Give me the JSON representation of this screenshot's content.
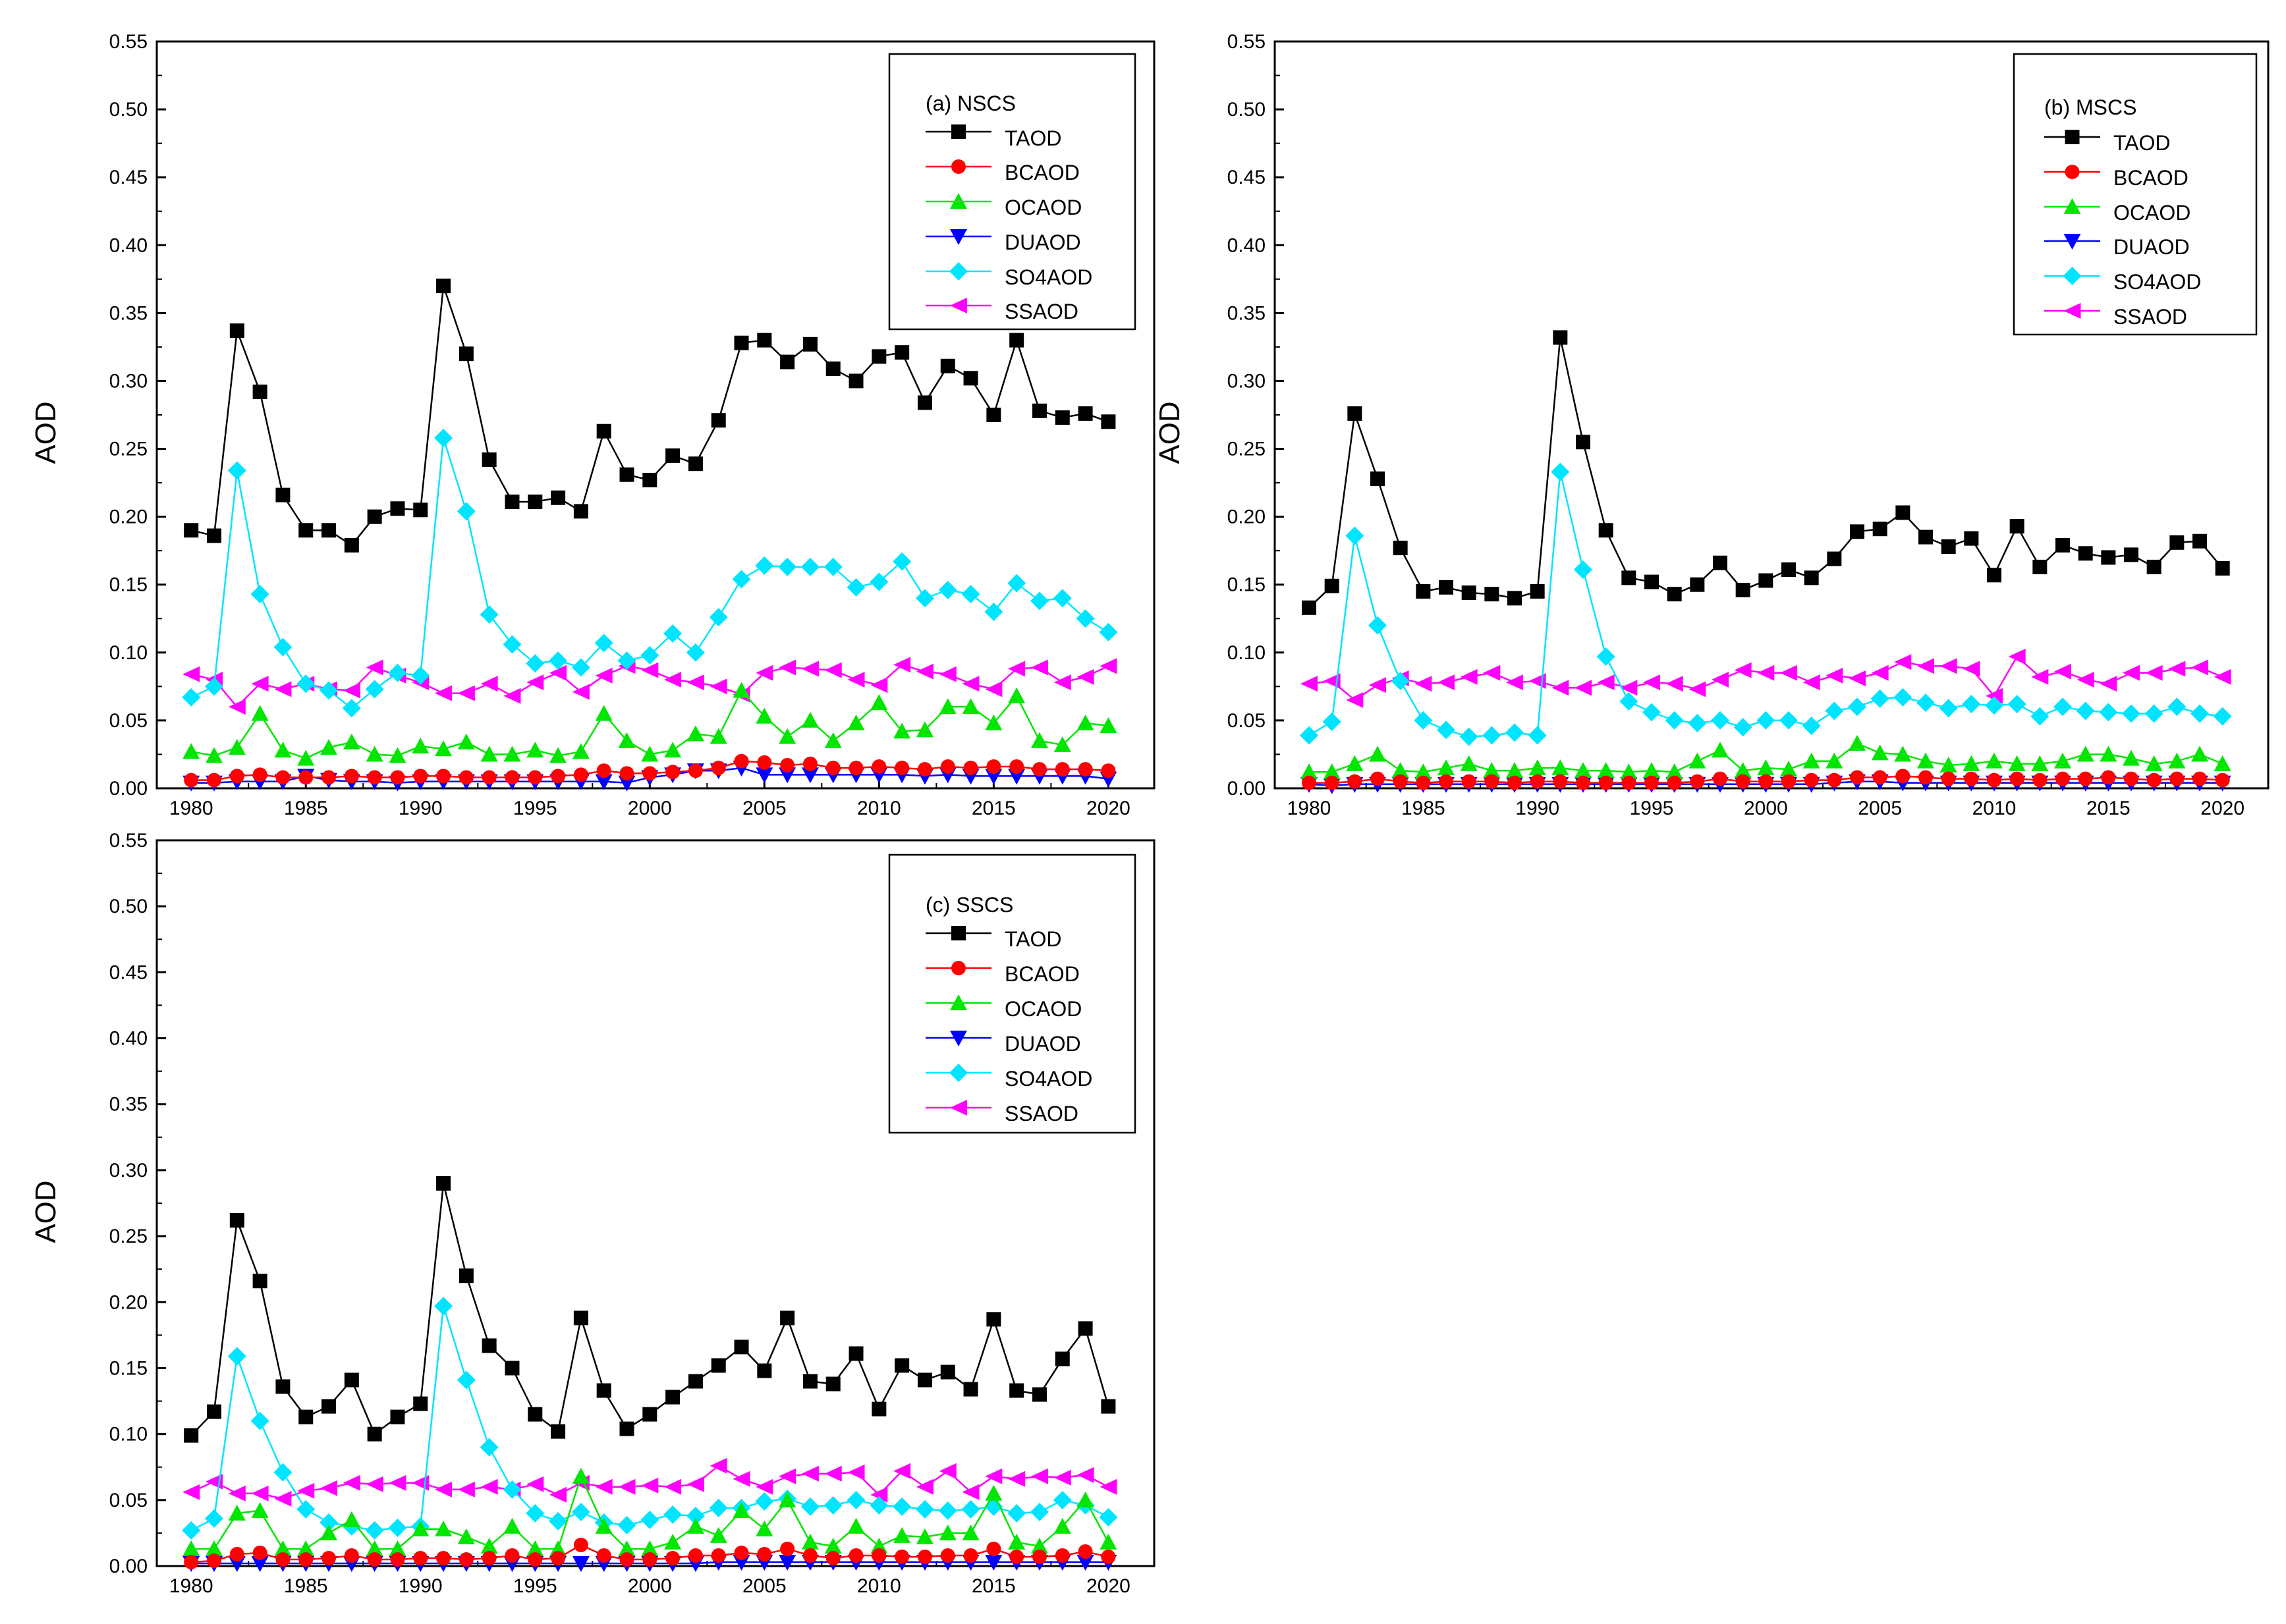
{
  "figure": {
    "ylabel": "AOD"
  },
  "colors": {
    "TAOD": "#000000",
    "BCAOD": "#ff0000",
    "OCAOD": "#00e600",
    "DUAOD": "#0000ff",
    "SO4AOD": "#00e5ff",
    "SSAOD": "#ff00ff"
  },
  "markers": {
    "TAOD": "square",
    "BCAOD": "circle",
    "OCAOD": "triangle-up",
    "DUAOD": "triangle-down",
    "SO4AOD": "diamond",
    "SSAOD": "triangle-left"
  },
  "chart_data": [
    {
      "type": "line",
      "id": "a",
      "title": "(a) NSCS",
      "xlabel": "",
      "ylabel": "AOD",
      "xlim": [
        1978.5,
        2022
      ],
      "ylim": [
        0,
        0.55
      ],
      "xticks": [
        "1980",
        "1985",
        "1990",
        "1995",
        "2000",
        "2005",
        "2010",
        "2015",
        "2020"
      ],
      "yticks": [
        "0.00",
        "0.05",
        "0.10",
        "0.15",
        "0.20",
        "0.25",
        "0.30",
        "0.35",
        "0.40",
        "0.45",
        "0.50",
        "0.55"
      ],
      "legend": [
        "TAOD",
        "BCAOD",
        "OCAOD",
        "DUAOD",
        "SO4AOD",
        "SSAOD"
      ],
      "legend_position": "top-right",
      "x": [
        1980,
        1981,
        1982,
        1983,
        1984,
        1985,
        1986,
        1987,
        1988,
        1989,
        1990,
        1991,
        1992,
        1993,
        1994,
        1995,
        1996,
        1997,
        1998,
        1999,
        2000,
        2001,
        2002,
        2003,
        2004,
        2005,
        2006,
        2007,
        2008,
        2009,
        2010,
        2011,
        2012,
        2013,
        2014,
        2015,
        2016,
        2017,
        2018,
        2019,
        2020
      ],
      "series": [
        {
          "name": "TAOD",
          "values": [
            0.19,
            0.186,
            0.337,
            0.292,
            0.216,
            0.19,
            0.19,
            0.179,
            0.2,
            0.206,
            0.205,
            0.37,
            0.32,
            0.242,
            0.211,
            0.211,
            0.214,
            0.204,
            0.263,
            0.231,
            0.227,
            0.245,
            0.239,
            0.271,
            0.328,
            0.33,
            0.314,
            0.327,
            0.309,
            0.3,
            0.318,
            0.321,
            0.284,
            0.311,
            0.302,
            0.275,
            0.33,
            0.278,
            0.273,
            0.276,
            0.27
          ]
        },
        {
          "name": "BCAOD",
          "values": [
            0.006,
            0.006,
            0.009,
            0.01,
            0.008,
            0.008,
            0.008,
            0.009,
            0.008,
            0.008,
            0.009,
            0.009,
            0.008,
            0.008,
            0.008,
            0.008,
            0.009,
            0.01,
            0.013,
            0.011,
            0.011,
            0.012,
            0.013,
            0.015,
            0.02,
            0.019,
            0.017,
            0.018,
            0.015,
            0.015,
            0.016,
            0.015,
            0.014,
            0.016,
            0.015,
            0.016,
            0.016,
            0.014,
            0.014,
            0.014,
            0.013
          ]
        },
        {
          "name": "OCAOD",
          "values": [
            0.027,
            0.024,
            0.03,
            0.055,
            0.028,
            0.022,
            0.03,
            0.034,
            0.025,
            0.024,
            0.031,
            0.029,
            0.034,
            0.025,
            0.025,
            0.028,
            0.024,
            0.027,
            0.055,
            0.035,
            0.025,
            0.028,
            0.04,
            0.038,
            0.072,
            0.053,
            0.038,
            0.05,
            0.035,
            0.048,
            0.063,
            0.042,
            0.043,
            0.06,
            0.06,
            0.048,
            0.068,
            0.035,
            0.032,
            0.048,
            0.046
          ]
        },
        {
          "name": "DUAOD",
          "values": [
            0.004,
            0.004,
            0.005,
            0.005,
            0.005,
            0.009,
            0.006,
            0.005,
            0.005,
            0.004,
            0.005,
            0.005,
            0.005,
            0.005,
            0.005,
            0.005,
            0.005,
            0.005,
            0.005,
            0.004,
            0.008,
            0.01,
            0.013,
            0.013,
            0.015,
            0.01,
            0.01,
            0.01,
            0.01,
            0.01,
            0.01,
            0.01,
            0.009,
            0.01,
            0.009,
            0.009,
            0.009,
            0.009,
            0.009,
            0.009,
            0.007
          ]
        },
        {
          "name": "SO4AOD",
          "values": [
            0.067,
            0.075,
            0.234,
            0.143,
            0.104,
            0.077,
            0.072,
            0.059,
            0.073,
            0.085,
            0.083,
            0.258,
            0.204,
            0.128,
            0.106,
            0.092,
            0.094,
            0.089,
            0.107,
            0.094,
            0.098,
            0.114,
            0.1,
            0.126,
            0.154,
            0.164,
            0.163,
            0.163,
            0.163,
            0.148,
            0.152,
            0.167,
            0.14,
            0.146,
            0.143,
            0.13,
            0.151,
            0.138,
            0.14,
            0.125,
            0.115
          ]
        },
        {
          "name": "SSAOD",
          "values": [
            0.084,
            0.08,
            0.06,
            0.077,
            0.073,
            0.077,
            0.073,
            0.072,
            0.089,
            0.083,
            0.078,
            0.07,
            0.07,
            0.077,
            0.068,
            0.078,
            0.085,
            0.071,
            0.083,
            0.09,
            0.087,
            0.08,
            0.078,
            0.075,
            0.069,
            0.085,
            0.089,
            0.088,
            0.087,
            0.08,
            0.076,
            0.091,
            0.086,
            0.084,
            0.077,
            0.073,
            0.088,
            0.089,
            0.078,
            0.082,
            0.09
          ]
        }
      ]
    },
    {
      "type": "line",
      "id": "b",
      "title": "(b) MSCS",
      "xlabel": "",
      "ylabel": "AOD",
      "xlim": [
        1978.5,
        2022
      ],
      "ylim": [
        0,
        0.55
      ],
      "xticks": [
        "1980",
        "1985",
        "1990",
        "1995",
        "2000",
        "2005",
        "2010",
        "2015",
        "2020"
      ],
      "yticks": [
        "0.00",
        "0.05",
        "0.10",
        "0.15",
        "0.20",
        "0.25",
        "0.30",
        "0.35",
        "0.40",
        "0.45",
        "0.50",
        "0.55"
      ],
      "legend": [
        "TAOD",
        "BCAOD",
        "OCAOD",
        "DUAOD",
        "SO4AOD",
        "SSAOD"
      ],
      "legend_position": "top-right",
      "x": [
        1980,
        1981,
        1982,
        1983,
        1984,
        1985,
        1986,
        1987,
        1988,
        1989,
        1990,
        1991,
        1992,
        1993,
        1994,
        1995,
        1996,
        1997,
        1998,
        1999,
        2000,
        2001,
        2002,
        2003,
        2004,
        2005,
        2006,
        2007,
        2008,
        2009,
        2010,
        2011,
        2012,
        2013,
        2014,
        2015,
        2016,
        2017,
        2018,
        2019,
        2020
      ],
      "series": [
        {
          "name": "TAOD",
          "values": [
            0.133,
            0.149,
            0.276,
            0.228,
            0.177,
            0.145,
            0.148,
            0.144,
            0.143,
            0.14,
            0.145,
            0.332,
            0.255,
            0.19,
            0.155,
            0.152,
            0.143,
            0.15,
            0.166,
            0.146,
            0.153,
            0.161,
            0.155,
            0.169,
            0.189,
            0.191,
            0.203,
            0.185,
            0.178,
            0.184,
            0.157,
            0.193,
            0.163,
            0.179,
            0.173,
            0.17,
            0.172,
            0.163,
            0.181,
            0.182,
            0.162
          ]
        },
        {
          "name": "BCAOD",
          "values": [
            0.004,
            0.004,
            0.005,
            0.007,
            0.005,
            0.004,
            0.005,
            0.005,
            0.005,
            0.004,
            0.005,
            0.005,
            0.004,
            0.004,
            0.004,
            0.004,
            0.004,
            0.005,
            0.007,
            0.005,
            0.005,
            0.005,
            0.006,
            0.006,
            0.008,
            0.008,
            0.009,
            0.008,
            0.007,
            0.007,
            0.006,
            0.007,
            0.006,
            0.007,
            0.007,
            0.008,
            0.007,
            0.006,
            0.007,
            0.007,
            0.006
          ]
        },
        {
          "name": "OCAOD",
          "values": [
            0.012,
            0.012,
            0.018,
            0.025,
            0.013,
            0.012,
            0.015,
            0.018,
            0.013,
            0.013,
            0.015,
            0.015,
            0.013,
            0.013,
            0.012,
            0.013,
            0.012,
            0.02,
            0.028,
            0.013,
            0.015,
            0.014,
            0.02,
            0.02,
            0.033,
            0.026,
            0.025,
            0.02,
            0.017,
            0.018,
            0.02,
            0.018,
            0.018,
            0.02,
            0.025,
            0.025,
            0.022,
            0.018,
            0.02,
            0.025,
            0.018
          ]
        },
        {
          "name": "DUAOD",
          "values": [
            0.003,
            0.002,
            0.003,
            0.003,
            0.003,
            0.003,
            0.003,
            0.003,
            0.003,
            0.003,
            0.003,
            0.003,
            0.003,
            0.003,
            0.003,
            0.003,
            0.003,
            0.003,
            0.003,
            0.003,
            0.003,
            0.003,
            0.003,
            0.004,
            0.005,
            0.005,
            0.004,
            0.004,
            0.004,
            0.004,
            0.004,
            0.004,
            0.004,
            0.004,
            0.004,
            0.004,
            0.004,
            0.004,
            0.004,
            0.004,
            0.004
          ]
        },
        {
          "name": "SO4AOD",
          "values": [
            0.039,
            0.049,
            0.186,
            0.12,
            0.079,
            0.05,
            0.043,
            0.038,
            0.039,
            0.041,
            0.039,
            0.233,
            0.161,
            0.097,
            0.064,
            0.056,
            0.05,
            0.048,
            0.05,
            0.045,
            0.05,
            0.05,
            0.046,
            0.057,
            0.06,
            0.066,
            0.067,
            0.063,
            0.059,
            0.062,
            0.061,
            0.062,
            0.053,
            0.06,
            0.057,
            0.056,
            0.055,
            0.055,
            0.06,
            0.055,
            0.053
          ]
        },
        {
          "name": "SSAOD",
          "values": [
            0.077,
            0.079,
            0.065,
            0.076,
            0.081,
            0.077,
            0.078,
            0.082,
            0.085,
            0.078,
            0.079,
            0.074,
            0.074,
            0.078,
            0.074,
            0.078,
            0.077,
            0.073,
            0.08,
            0.087,
            0.085,
            0.085,
            0.078,
            0.083,
            0.081,
            0.085,
            0.093,
            0.09,
            0.09,
            0.088,
            0.068,
            0.097,
            0.082,
            0.086,
            0.08,
            0.077,
            0.085,
            0.085,
            0.088,
            0.089,
            0.082
          ]
        }
      ]
    },
    {
      "type": "line",
      "id": "c",
      "title": "(c) SSCS",
      "xlabel": "",
      "ylabel": "AOD",
      "xlim": [
        1978.5,
        2022
      ],
      "ylim": [
        0,
        0.55
      ],
      "xticks": [
        "1980",
        "1985",
        "1990",
        "1995",
        "2000",
        "2005",
        "2010",
        "2015",
        "2020"
      ],
      "yticks": [
        "0.00",
        "0.05",
        "0.10",
        "0.15",
        "0.20",
        "0.25",
        "0.30",
        "0.35",
        "0.40",
        "0.45",
        "0.50",
        "0.55"
      ],
      "legend": [
        "TAOD",
        "BCAOD",
        "OCAOD",
        "DUAOD",
        "SO4AOD",
        "SSAOD"
      ],
      "legend_position": "top-right",
      "x": [
        1980,
        1981,
        1982,
        1983,
        1984,
        1985,
        1986,
        1987,
        1988,
        1989,
        1990,
        1991,
        1992,
        1993,
        1994,
        1995,
        1996,
        1997,
        1998,
        1999,
        2000,
        2001,
        2002,
        2003,
        2004,
        2005,
        2006,
        2007,
        2008,
        2009,
        2010,
        2011,
        2012,
        2013,
        2014,
        2015,
        2016,
        2017,
        2018,
        2019,
        2020
      ],
      "series": [
        {
          "name": "TAOD",
          "values": [
            0.099,
            0.117,
            0.262,
            0.216,
            0.136,
            0.113,
            0.121,
            0.141,
            0.1,
            0.113,
            0.123,
            0.29,
            0.22,
            0.167,
            0.15,
            0.115,
            0.102,
            0.188,
            0.133,
            0.104,
            0.115,
            0.128,
            0.14,
            0.152,
            0.166,
            0.148,
            0.188,
            0.14,
            0.138,
            0.161,
            0.119,
            0.152,
            0.141,
            0.147,
            0.134,
            0.187,
            0.133,
            0.13,
            0.157,
            0.18,
            0.121
          ]
        },
        {
          "name": "BCAOD",
          "values": [
            0.003,
            0.004,
            0.009,
            0.01,
            0.005,
            0.005,
            0.006,
            0.008,
            0.005,
            0.005,
            0.006,
            0.006,
            0.005,
            0.006,
            0.008,
            0.005,
            0.006,
            0.016,
            0.008,
            0.005,
            0.005,
            0.006,
            0.008,
            0.008,
            0.01,
            0.009,
            0.013,
            0.008,
            0.006,
            0.008,
            0.008,
            0.007,
            0.007,
            0.008,
            0.008,
            0.013,
            0.007,
            0.007,
            0.008,
            0.011,
            0.007
          ]
        },
        {
          "name": "OCAOD",
          "values": [
            0.013,
            0.013,
            0.04,
            0.042,
            0.013,
            0.013,
            0.025,
            0.035,
            0.013,
            0.013,
            0.028,
            0.028,
            0.022,
            0.015,
            0.03,
            0.013,
            0.013,
            0.068,
            0.03,
            0.013,
            0.013,
            0.018,
            0.03,
            0.023,
            0.042,
            0.028,
            0.05,
            0.018,
            0.015,
            0.03,
            0.015,
            0.023,
            0.022,
            0.025,
            0.025,
            0.055,
            0.018,
            0.015,
            0.03,
            0.05,
            0.018
          ]
        },
        {
          "name": "DUAOD",
          "values": [
            0.002,
            0.002,
            0.002,
            0.002,
            0.002,
            0.002,
            0.002,
            0.002,
            0.002,
            0.002,
            0.002,
            0.002,
            0.002,
            0.002,
            0.002,
            0.002,
            0.002,
            0.002,
            0.002,
            0.002,
            0.002,
            0.002,
            0.002,
            0.003,
            0.003,
            0.003,
            0.003,
            0.003,
            0.003,
            0.003,
            0.003,
            0.003,
            0.003,
            0.003,
            0.003,
            0.003,
            0.003,
            0.003,
            0.003,
            0.003,
            0.003
          ]
        },
        {
          "name": "SO4AOD",
          "values": [
            0.027,
            0.036,
            0.159,
            0.11,
            0.071,
            0.043,
            0.033,
            0.03,
            0.027,
            0.029,
            0.03,
            0.197,
            0.141,
            0.09,
            0.058,
            0.04,
            0.034,
            0.041,
            0.033,
            0.031,
            0.035,
            0.039,
            0.038,
            0.044,
            0.044,
            0.049,
            0.051,
            0.045,
            0.046,
            0.05,
            0.046,
            0.045,
            0.043,
            0.042,
            0.043,
            0.045,
            0.04,
            0.041,
            0.05,
            0.046,
            0.037
          ]
        },
        {
          "name": "SSAOD",
          "values": [
            0.056,
            0.064,
            0.055,
            0.055,
            0.051,
            0.057,
            0.059,
            0.063,
            0.062,
            0.063,
            0.063,
            0.058,
            0.058,
            0.06,
            0.058,
            0.062,
            0.054,
            0.063,
            0.06,
            0.06,
            0.061,
            0.06,
            0.062,
            0.076,
            0.066,
            0.06,
            0.068,
            0.07,
            0.07,
            0.071,
            0.054,
            0.072,
            0.06,
            0.072,
            0.056,
            0.068,
            0.066,
            0.068,
            0.067,
            0.069,
            0.06
          ]
        }
      ]
    }
  ]
}
